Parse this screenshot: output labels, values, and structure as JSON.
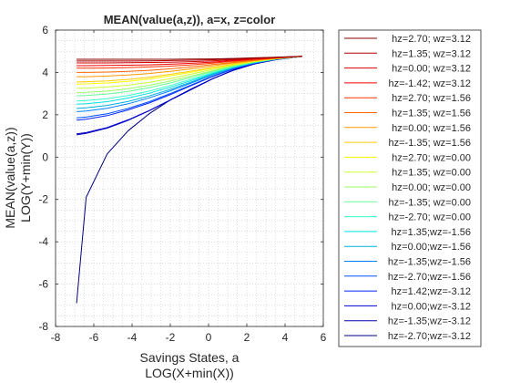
{
  "chart_data": {
    "type": "line",
    "title": "MEAN(value(a,z)), a=x, z=color",
    "xlabel": [
      "Savings States, a",
      "LOG(X+min(X))"
    ],
    "ylabel": [
      "MEAN(value(a,z))",
      "LOG(Y+min(Y))"
    ],
    "xlim": [
      -8,
      6
    ],
    "ylim": [
      -8,
      6
    ],
    "xticks": [
      -8,
      -6,
      -4,
      -2,
      0,
      2,
      4,
      6
    ],
    "yticks": [
      -8,
      -6,
      -4,
      -2,
      0,
      2,
      4,
      6
    ],
    "grid": "minor-dotted",
    "legend_position": "outside-right",
    "x": [
      -6.9,
      -6.4,
      -5.3,
      -4.2,
      -3.1,
      -2.0,
      -0.9,
      0.2,
      1.3,
      2.4,
      3.5,
      4.9
    ],
    "series": [
      {
        "name": "hz=2.70; wz=3.12",
        "color": "#8b0000",
        "values": [
          4.62,
          4.62,
          4.62,
          4.62,
          4.62,
          4.62,
          4.63,
          4.64,
          4.66,
          4.69,
          4.72,
          4.76
        ]
      },
      {
        "name": "hz=1.35; wz=3.12",
        "color": "#b00000",
        "values": [
          4.54,
          4.54,
          4.54,
          4.54,
          4.55,
          4.56,
          4.58,
          4.6,
          4.63,
          4.67,
          4.71,
          4.76
        ]
      },
      {
        "name": "hz=0.00; wz=3.12",
        "color": "#d40000",
        "values": [
          4.45,
          4.45,
          4.45,
          4.46,
          4.47,
          4.48,
          4.51,
          4.55,
          4.6,
          4.65,
          4.7,
          4.76
        ]
      },
      {
        "name": "hz=-1.42; wz=3.12",
        "color": "#f00000",
        "values": [
          4.32,
          4.32,
          4.33,
          4.34,
          4.36,
          4.39,
          4.43,
          4.49,
          4.56,
          4.63,
          4.69,
          4.76
        ]
      },
      {
        "name": "hz=2.70; wz=1.56",
        "color": "#ff3300",
        "values": [
          4.2,
          4.2,
          4.21,
          4.23,
          4.26,
          4.3,
          4.36,
          4.44,
          4.53,
          4.61,
          4.68,
          4.76
        ]
      },
      {
        "name": "hz=1.35; wz=1.56",
        "color": "#ff6600",
        "values": [
          4.0,
          4.0,
          4.02,
          4.05,
          4.1,
          4.17,
          4.26,
          4.37,
          4.48,
          4.58,
          4.67,
          4.76
        ]
      },
      {
        "name": "hz=0.00; wz=1.56",
        "color": "#ff9900",
        "values": [
          3.8,
          3.8,
          3.83,
          3.88,
          3.95,
          4.05,
          4.17,
          4.31,
          4.45,
          4.56,
          4.66,
          4.76
        ]
      },
      {
        "name": "hz=-1.35; wz=1.56",
        "color": "#ffcc00",
        "values": [
          3.55,
          3.56,
          3.6,
          3.67,
          3.77,
          3.91,
          4.06,
          4.23,
          4.4,
          4.54,
          4.65,
          4.76
        ]
      },
      {
        "name": "hz=2.70; wz=0.00",
        "color": "#ffff00",
        "values": [
          3.45,
          3.46,
          3.5,
          3.58,
          3.69,
          3.84,
          4.01,
          4.2,
          4.38,
          4.53,
          4.65,
          4.76
        ]
      },
      {
        "name": "hz=1.35; wz=0.00",
        "color": "#ccff33",
        "values": [
          3.25,
          3.26,
          3.31,
          3.4,
          3.53,
          3.71,
          3.92,
          4.14,
          4.35,
          4.51,
          4.64,
          4.76
        ]
      },
      {
        "name": "hz=0.00; wz=0.00",
        "color": "#99ff66",
        "values": [
          3.05,
          3.06,
          3.12,
          3.23,
          3.39,
          3.59,
          3.83,
          4.08,
          4.32,
          4.5,
          4.64,
          4.76
        ]
      },
      {
        "name": "hz=-1.35; wz=0.00",
        "color": "#66ff99",
        "values": [
          2.9,
          2.91,
          2.98,
          3.1,
          3.28,
          3.5,
          3.77,
          4.04,
          4.3,
          4.49,
          4.63,
          4.76
        ]
      },
      {
        "name": "hz=-2.70; wz=0.00",
        "color": "#33ffcc",
        "values": [
          2.65,
          2.67,
          2.76,
          2.91,
          3.12,
          3.38,
          3.68,
          3.99,
          4.27,
          4.48,
          4.63,
          4.76
        ]
      },
      {
        "name": "hz=1.35;wz=-1.56",
        "color": "#00e0e0",
        "values": [
          2.5,
          2.52,
          2.62,
          2.79,
          3.02,
          3.3,
          3.62,
          3.95,
          4.25,
          4.47,
          4.62,
          4.76
        ]
      },
      {
        "name": "hz=0.00;wz=-1.56",
        "color": "#00b0e0",
        "values": [
          2.3,
          2.33,
          2.44,
          2.63,
          2.89,
          3.2,
          3.55,
          3.91,
          4.23,
          4.46,
          4.62,
          4.76
        ]
      },
      {
        "name": "hz=-1.35;wz=-1.56",
        "color": "#0080ff",
        "values": [
          2.15,
          2.18,
          2.31,
          2.52,
          2.8,
          3.13,
          3.5,
          3.88,
          4.21,
          4.45,
          4.62,
          4.76
        ]
      },
      {
        "name": "hz=-2.70;wz=-1.56",
        "color": "#0050ff",
        "values": [
          1.85,
          1.89,
          2.05,
          2.3,
          2.62,
          3.0,
          3.41,
          3.82,
          4.18,
          4.44,
          4.61,
          4.76
        ]
      },
      {
        "name": "hz=1.42;wz=-3.12",
        "color": "#0020ff",
        "values": [
          1.75,
          1.79,
          1.96,
          2.23,
          2.56,
          2.95,
          3.38,
          3.8,
          4.17,
          4.43,
          4.61,
          4.76
        ]
      },
      {
        "name": "hz=0.00;wz=-3.12",
        "color": "#0000d0",
        "values": [
          1.1,
          1.16,
          1.4,
          1.76,
          2.2,
          2.7,
          3.2,
          3.7,
          4.12,
          4.41,
          4.6,
          4.76
        ]
      },
      {
        "name": "hz=-1.35;wz=-3.12",
        "color": "#0000b0",
        "values": [
          1.05,
          1.12,
          1.37,
          1.74,
          2.19,
          2.69,
          3.19,
          3.69,
          4.11,
          4.41,
          4.6,
          4.76
        ]
      },
      {
        "name": "hz=-2.70;wz=-3.12",
        "color": "#000080",
        "values": [
          -6.9,
          -1.9,
          0.15,
          1.25,
          2.05,
          2.7,
          3.22,
          3.7,
          4.1,
          4.4,
          4.6,
          4.76
        ]
      }
    ]
  }
}
